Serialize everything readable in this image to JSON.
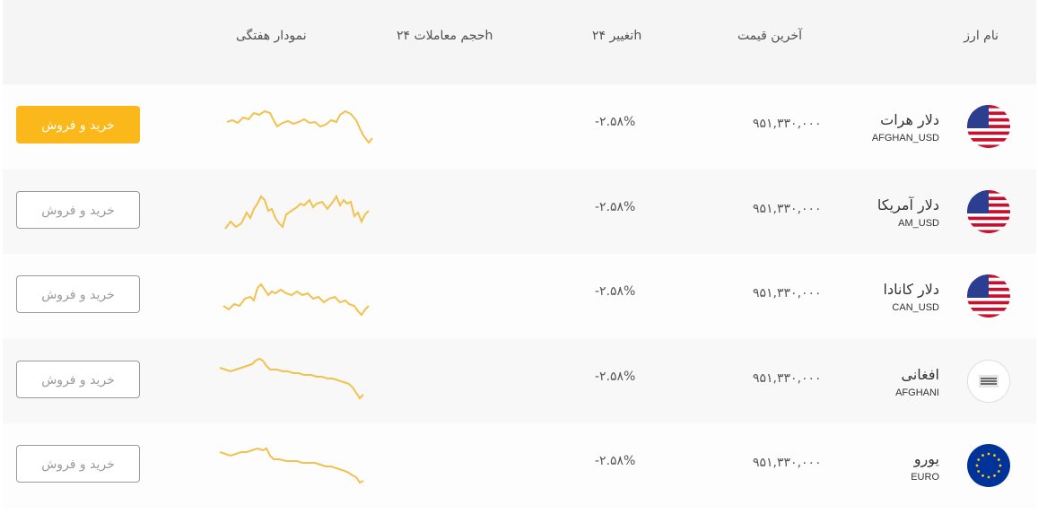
{
  "header": {
    "currency_name": "نام ارز",
    "last_price": "آخرین قیمت",
    "change_24h": "تغییر ۲۴h",
    "volume_24h": "حجم معاملات ۲۴h",
    "weekly_chart": "نمودار هفتگی"
  },
  "colors": {
    "accent": "#fbb81a",
    "sparkline": "#f2c14e"
  },
  "rows": [
    {
      "name_fa": "دلار هرات",
      "code": "AFGHAN_USD",
      "price": "۹۵۱,۳۳۰,۰۰۰",
      "change": "-۲.۵۸%",
      "action": "خرید و فروش",
      "flag_icon": "us-flag-icon"
    },
    {
      "name_fa": "دلار آمریکا",
      "code": "AM_USD",
      "price": "۹۵۱,۳۳۰,۰۰۰",
      "change": "-۲.۵۸%",
      "action": "خرید و فروش",
      "flag_icon": "us-flag-icon"
    },
    {
      "name_fa": "دلار کانادا",
      "code": "CAN_USD",
      "price": "۹۵۱,۳۳۰,۰۰۰",
      "change": "-۲.۵۸%",
      "action": "خرید و فروش",
      "flag_icon": "us-flag-icon"
    },
    {
      "name_fa": "افغانی",
      "code": "AFGHANI",
      "price": "۹۵۱,۳۳۰,۰۰۰",
      "change": "-۲.۵۸%",
      "action": "خرید و فروش",
      "flag_icon": "afghanistan-emblem-icon"
    },
    {
      "name_fa": "یورو",
      "code": "EURO",
      "price": "۹۵۱,۳۳۰,۰۰۰",
      "change": "-۲.۵۸%",
      "action": "خرید و فروش",
      "flag_icon": "eu-flag-icon"
    }
  ]
}
